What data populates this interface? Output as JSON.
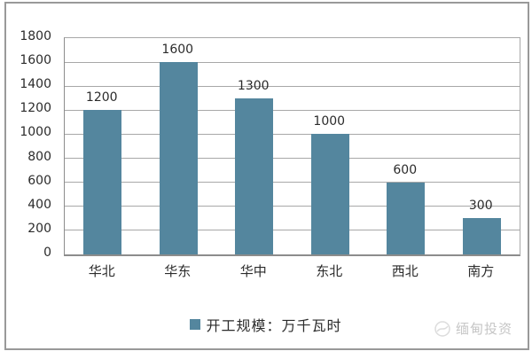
{
  "chart_data": {
    "type": "bar",
    "categories": [
      "华北",
      "华东",
      "华中",
      "东北",
      "西北",
      "南方"
    ],
    "values": [
      1200,
      1600,
      1300,
      1000,
      600,
      300
    ],
    "series": [
      {
        "name": "开工规模：万千瓦时",
        "values": [
          1200,
          1600,
          1300,
          1000,
          600,
          300
        ]
      }
    ],
    "data_labels": [
      "1200",
      "1600",
      "1300",
      "1000",
      "600",
      "300"
    ],
    "title": "",
    "xlabel": "",
    "ylabel": "",
    "ylim": [
      0,
      1800
    ],
    "yticks": [
      0,
      200,
      400,
      600,
      800,
      1000,
      1200,
      1400,
      1600,
      1800
    ],
    "grid": true,
    "legend_position": "bottom"
  },
  "legend": {
    "label": "开工规模：万千瓦时",
    "swatch_color": "#54869e"
  },
  "watermark": {
    "text": "缅甸投资"
  },
  "colors": {
    "bar": "#54869e",
    "gridline": "#a8a8a8",
    "axis": "#8c8c8c",
    "text": "#2b2b2b",
    "frame_border": "#999999",
    "watermark": "#c6c6c6"
  }
}
